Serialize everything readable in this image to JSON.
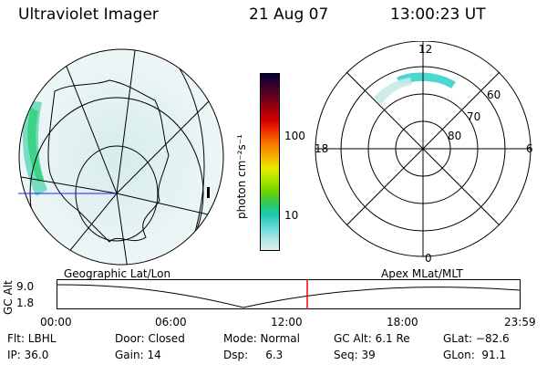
{
  "header": {
    "instrument": "Ultraviolet Imager",
    "date": "21 Aug 07",
    "time": "13:00:23 UT"
  },
  "colorbar": {
    "unit_label": "photon cm⁻²s⁻¹",
    "ticks": [
      "100",
      "10"
    ],
    "colors": [
      "#000033",
      "#3a0030",
      "#6a0020",
      "#a0000a",
      "#d40000",
      "#f03a00",
      "#f77a00",
      "#f5b000",
      "#eaea00",
      "#b0e600",
      "#6ed400",
      "#30c85a",
      "#20c8b0",
      "#60d8d8",
      "#a8e4e4",
      "#e0eded"
    ]
  },
  "geo_panel": {
    "label": "Geographic Lat/Lon"
  },
  "polar_panel": {
    "label": "Apex MLat/MLT",
    "mlt_labels": {
      "top": "12",
      "left": "18",
      "right": "6",
      "bottom": "0"
    },
    "lat_labels": [
      "60",
      "70",
      "80"
    ]
  },
  "timeline": {
    "ylabel": "GC Alt",
    "yticks": [
      "9.0",
      "1.8"
    ],
    "xticks": [
      "00:00",
      "06:00",
      "12:00",
      "18:00",
      "23:59"
    ],
    "current_marker": "13:00"
  },
  "info": {
    "flt": "Flt: LBHL",
    "door": "Door: Closed",
    "mode": "Mode: Normal",
    "gcalt": "GC Alt: 6.1 Re",
    "glat": "GLat: −82.6",
    "ip": "IP: 36.0",
    "gain": "Gain: 14",
    "dsp": "Dsp:     6.3",
    "seq": "Seq: 39",
    "glon": "GLon:  91.1"
  }
}
